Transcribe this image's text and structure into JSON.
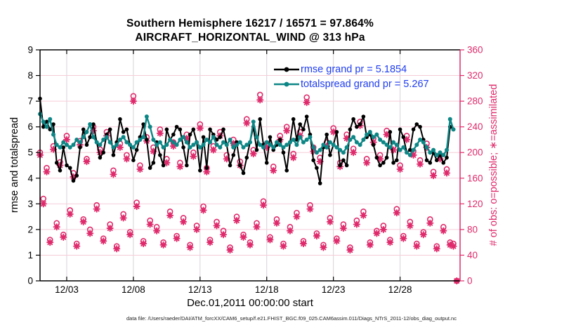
{
  "header": {
    "title_line1": "Southern Hemisphere 16217 / 16571 = 97.864%",
    "title_line2": "AIRCRAFT_HORIZONTAL_WIND @ 313 hPa"
  },
  "legend": {
    "text_color": "#1f3df0",
    "items": [
      {
        "label": "rmse grand pr = 5.1854",
        "color": "#000000"
      },
      {
        "label": "totalspread grand pr = 5.267",
        "color": "#0d8686"
      }
    ]
  },
  "footer": {
    "data_file_caption": "data file: /Users/raeder/DAI/ATM_forcXX/CAM6_setup/f.e21.FHIST_BGC.f09_025.CAM6assim.011/Diags_NTrS_2011-12/obs_diag_output.nc"
  },
  "chart_data": {
    "type": "line+scatter",
    "title": "Southern Hemisphere 16217 / 16571 = 97.864%",
    "subtitle": "AIRCRAFT_HORIZONTAL_WIND @ 313 hPa",
    "stats": {
      "possible_total": 16571,
      "assimilated_total": 16217,
      "assimilated_pct": 97.864,
      "rmse_grand_pr": 5.1854,
      "totalspread_grand_pr": 5.267
    },
    "x_axis": {
      "label": "Dec.01,2011 00:00:00 start",
      "tick_labels": [
        "12/03",
        "12/08",
        "12/13",
        "12/18",
        "12/23",
        "12/28"
      ],
      "tick_days": [
        2,
        7,
        12,
        17,
        22,
        27
      ],
      "range_days": [
        0,
        31.5
      ],
      "bin_hours": 6
    },
    "left_axis": {
      "label": "rmse and totalspread",
      "ticks": [
        0,
        1,
        2,
        3,
        4,
        5,
        6,
        7,
        8,
        9
      ],
      "range": [
        0,
        9
      ],
      "color": "#000000"
    },
    "right_axis": {
      "label": "# of obs: o=possible; ∗=assimilated",
      "ticks": [
        0,
        40,
        80,
        120,
        160,
        200,
        240,
        280,
        320,
        360
      ],
      "range": [
        0,
        360
      ],
      "color": "#df2a6b"
    },
    "grid": {
      "h_color": "#f5cdd9",
      "v_color": "#d8d2d8"
    },
    "series": [
      {
        "name": "rmse",
        "axis": "left",
        "color": "#000000",
        "marker": "filled-circle",
        "values": [
          7.1,
          6.0,
          6.2,
          5.9,
          6.1,
          4.6,
          4.3,
          5.2,
          4.5,
          4.4,
          3.9,
          4.1,
          5.2,
          5.9,
          5.3,
          5.6,
          6.1,
          5.4,
          4.8,
          5.0,
          5.7,
          5.9,
          4.9,
          5.4,
          6.3,
          5.8,
          5.9,
          5.3,
          4.7,
          5.1,
          5.6,
          6.1,
          5.5,
          4.4,
          4.6,
          5.4,
          4.9,
          4.5,
          5.9,
          5.5,
          5.7,
          6.0,
          5.9,
          5.2,
          4.5,
          5.7,
          5.9,
          5.4,
          4.3,
          5.6,
          4.4,
          5.9,
          5.7,
          5.5,
          5.6,
          5.9,
          5.3,
          4.5,
          4.9,
          5.4,
          4.5,
          4.2,
          4.8,
          5.4,
          6.0,
          5.1,
          6.3,
          5.3,
          4.6,
          5.6,
          5.1,
          5.3,
          5.5,
          5.0,
          4.3,
          5.4,
          6.3,
          5.5,
          6.1,
          5.9,
          6.4,
          5.7,
          4.7,
          4.4,
          3.8,
          5.2,
          5.7,
          4.9,
          5.3,
          5.8,
          4.5,
          4.7,
          4.5,
          5.9,
          6.3,
          6.0,
          6.1,
          6.4,
          5.6,
          5.7,
          5.3,
          4.8,
          4.5,
          4.6,
          4.8,
          5.8,
          4.6,
          4.7,
          5.9,
          5.6,
          5.0,
          5.1,
          5.9,
          6.1,
          6.0,
          5.5,
          4.7,
          4.6,
          5.0,
          4.7,
          4.9,
          4.6,
          4.8,
          6.0,
          5.9
        ]
      },
      {
        "name": "totalspread",
        "axis": "left",
        "color": "#0d8686",
        "marker": "filled-circle",
        "values": [
          6.5,
          6.2,
          6.0,
          6.3,
          5.7,
          5.3,
          5.2,
          5.4,
          5.3,
          5.2,
          5.3,
          5.5,
          5.4,
          5.6,
          5.8,
          6.1,
          5.6,
          5.4,
          5.3,
          5.5,
          5.6,
          5.4,
          5.2,
          5.3,
          5.5,
          5.6,
          5.4,
          5.3,
          5.2,
          5.4,
          5.5,
          5.6,
          6.4,
          6.0,
          5.5,
          5.3,
          5.4,
          5.2,
          5.3,
          5.5,
          5.4,
          5.3,
          5.5,
          5.6,
          5.4,
          5.2,
          5.3,
          5.4,
          5.2,
          5.3,
          5.5,
          5.4,
          5.6,
          5.3,
          5.2,
          5.4,
          5.3,
          5.5,
          5.2,
          5.3,
          5.4,
          5.2,
          5.3,
          5.4,
          6.2,
          5.6,
          5.3,
          5.2,
          5.4,
          5.3,
          5.2,
          5.4,
          5.3,
          5.2,
          5.3,
          5.4,
          5.5,
          5.3,
          5.6,
          5.4,
          5.5,
          5.6,
          5.2,
          5.0,
          5.1,
          5.3,
          5.2,
          5.4,
          5.3,
          5.2,
          5.1,
          5.0,
          5.2,
          5.5,
          5.6,
          5.4,
          5.3,
          5.5,
          5.7,
          5.8,
          5.6,
          5.7,
          5.5,
          5.4,
          5.3,
          5.2,
          5.4,
          5.3,
          5.1,
          5.2,
          5.0,
          4.9,
          5.1,
          5.3,
          5.5,
          5.4,
          5.2,
          5.0,
          5.1,
          4.9,
          5.0,
          4.9,
          5.1,
          6.3,
          5.9
        ]
      },
      {
        "name": "possible_obs",
        "axis": "right",
        "color": "#df2a6b",
        "marker": "open-circle",
        "symbol": "o",
        "values": [
          200,
          128,
          176,
          64,
          210,
          90,
          185,
          72,
          226,
          110,
          168,
          58,
          218,
          96,
          190,
          80,
          240,
          118,
          205,
          66,
          232,
          88,
          172,
          54,
          214,
          104,
          196,
          76,
          288,
          122,
          180,
          62,
          224,
          94,
          208,
          84,
          236,
          60,
          190,
          108,
          216,
          70,
          184,
          98,
          228,
          56,
          200,
          86,
          244,
          116,
          176,
          64,
          210,
          92,
          232,
          78,
          196,
          52,
          220,
          100,
          186,
          72,
          252,
          60,
          204,
          90,
          290,
          124,
          214,
          68,
          178,
          96,
          226,
          58,
          240,
          84,
          198,
          106,
          232,
          62,
          286,
          118,
          208,
          74,
          192,
          56,
          216,
          98,
          238,
          66,
          184,
          88,
          228,
          52,
          206,
          94,
          248,
          108,
          190,
          60,
          222,
          78,
          196,
          86,
          234,
          64,
          210,
          112,
          180,
          70,
          226,
          92,
          202,
          58,
          188,
          76,
          214,
          96,
          170,
          54,
          196,
          84,
          174,
          60,
          58,
          0
        ]
      },
      {
        "name": "assimilated_obs",
        "axis": "right",
        "color": "#df2a6b",
        "marker": "asterisk",
        "symbol": "*",
        "values": [
          196,
          120,
          170,
          60,
          205,
          84,
          180,
          68,
          220,
          104,
          162,
          54,
          212,
          92,
          186,
          74,
          234,
          112,
          200,
          62,
          226,
          82,
          166,
          50,
          208,
          98,
          190,
          72,
          280,
          116,
          174,
          58,
          218,
          88,
          202,
          78,
          230,
          56,
          184,
          102,
          210,
          66,
          178,
          92,
          222,
          52,
          194,
          80,
          238,
          110,
          170,
          60,
          204,
          86,
          226,
          72,
          190,
          48,
          214,
          94,
          180,
          68,
          246,
          56,
          198,
          84,
          282,
          118,
          208,
          64,
          172,
          90,
          220,
          54,
          234,
          78,
          192,
          100,
          226,
          58,
          278,
          112,
          202,
          70,
          186,
          52,
          210,
          92,
          232,
          62,
          178,
          82,
          222,
          48,
          200,
          88,
          242,
          102,
          184,
          56,
          216,
          74,
          190,
          80,
          228,
          60,
          204,
          106,
          174,
          66,
          220,
          86,
          196,
          54,
          182,
          72,
          208,
          90,
          164,
          50,
          190,
          78,
          168,
          56,
          54,
          0
        ]
      }
    ]
  }
}
